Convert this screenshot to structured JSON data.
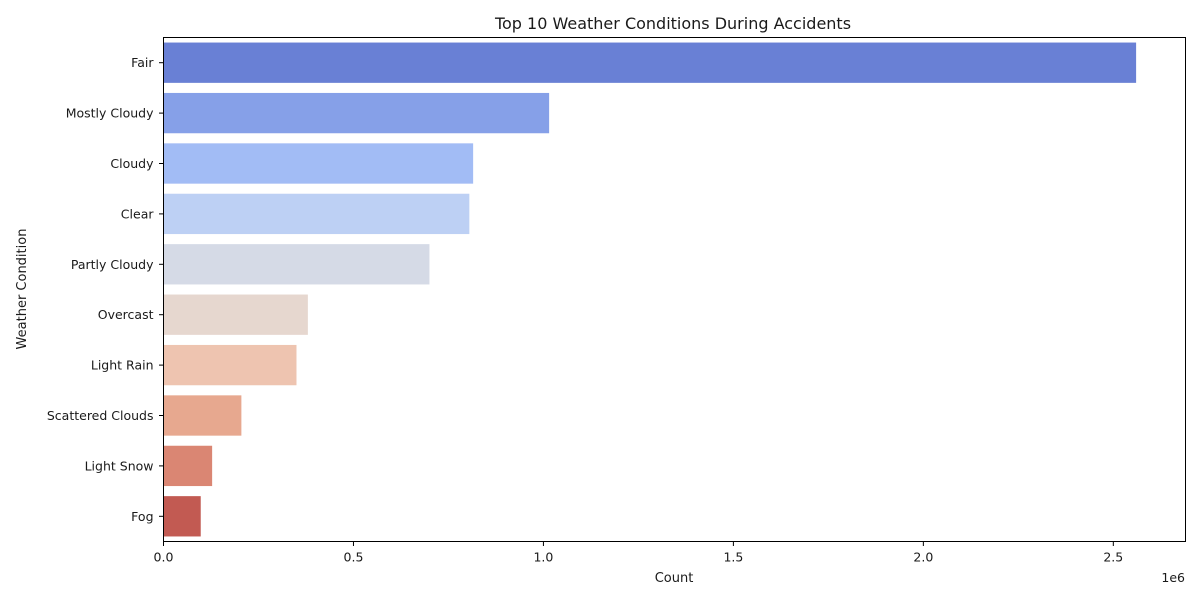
{
  "chart_data": {
    "type": "bar",
    "orientation": "horizontal",
    "title": "Top 10 Weather Conditions During Accidents",
    "xlabel": "Count",
    "ylabel": "Weather Condition",
    "x_offset_label": "1e6",
    "x_scale_factor": 1000000,
    "xlim": [
      0,
      2.69
    ],
    "xticks": [
      0.0,
      0.5,
      1.0,
      1.5,
      2.0,
      2.5
    ],
    "xtick_labels": [
      "0.0",
      "0.5",
      "1.0",
      "1.5",
      "2.0",
      "2.5"
    ],
    "grid": false,
    "legend": "none",
    "categories": [
      "Fair",
      "Mostly Cloudy",
      "Cloudy",
      "Clear",
      "Partly Cloudy",
      "Overcast",
      "Light Rain",
      "Scattered Clouds",
      "Light Snow",
      "Fog"
    ],
    "values": [
      2560000,
      1015000,
      815000,
      805000,
      700000,
      380000,
      350000,
      205000,
      128000,
      98000
    ],
    "colors": [
      "#6980d5",
      "#86a0e8",
      "#a2bcf5",
      "#bdd0f4",
      "#d5dae6",
      "#e6d7cf",
      "#eec4b0",
      "#e7a88f",
      "#da8673",
      "#c25a52"
    ]
  }
}
